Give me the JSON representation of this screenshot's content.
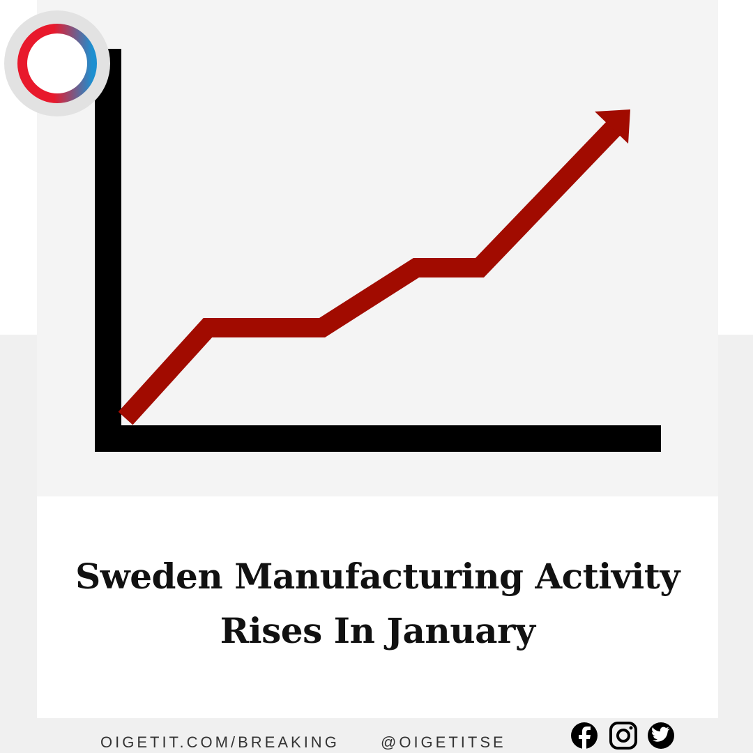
{
  "headline": {
    "lines": [
      "Sweden Manufacturing Activity",
      "Rises In January"
    ]
  },
  "footer": {
    "website": "OIGETIT.COM/BREAKING",
    "handle": "@OIGETITSE"
  }
}
